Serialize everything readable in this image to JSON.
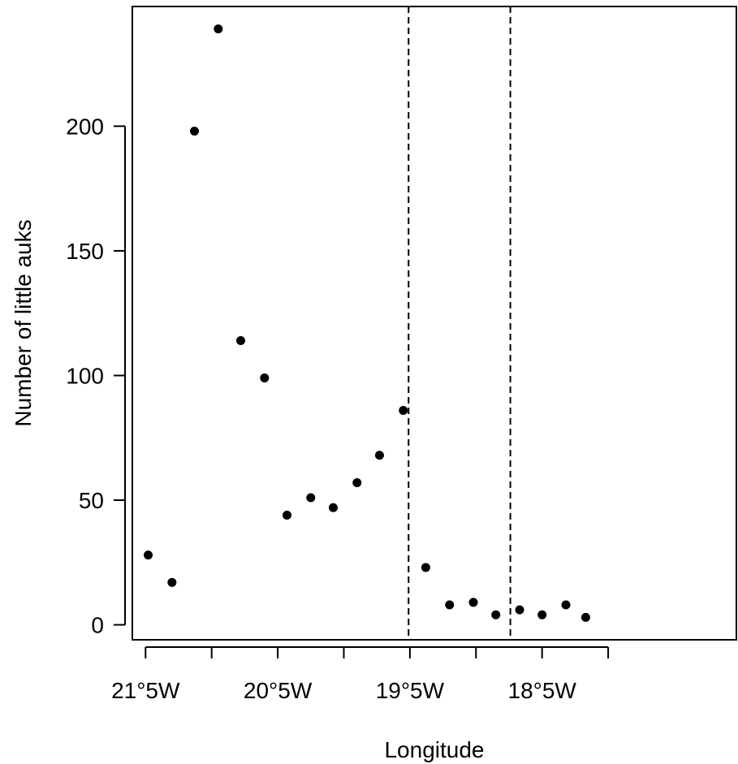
{
  "chart_data": {
    "type": "scatter",
    "title": "",
    "xlabel": "Longitude",
    "ylabel": "Number of little auks",
    "xlim": [
      -21.85,
      -17.28
    ],
    "ylim": [
      -6,
      248
    ],
    "x_ticks": [
      -21.75,
      -21.25,
      -20.75,
      -20.25,
      -19.75,
      -19.25,
      -18.75,
      -18.25
    ],
    "x_tick_labels": [
      {
        "value": -21.75,
        "label": "21°5W"
      },
      {
        "value": -20.75,
        "label": "20°5W"
      },
      {
        "value": -19.75,
        "label": "19°5W"
      },
      {
        "value": -18.75,
        "label": "18°5W"
      }
    ],
    "y_ticks": [
      0,
      50,
      100,
      150,
      200
    ],
    "vlines": [
      -19.76,
      -18.99
    ],
    "grid": false,
    "legend": "none",
    "marker_color": "#000000",
    "points": [
      {
        "x": -21.73,
        "y": 28
      },
      {
        "x": -21.55,
        "y": 17
      },
      {
        "x": -21.38,
        "y": 198
      },
      {
        "x": -21.2,
        "y": 239
      },
      {
        "x": -21.03,
        "y": 114
      },
      {
        "x": -20.85,
        "y": 99
      },
      {
        "x": -20.68,
        "y": 44
      },
      {
        "x": -20.5,
        "y": 51
      },
      {
        "x": -20.33,
        "y": 47
      },
      {
        "x": -20.15,
        "y": 57
      },
      {
        "x": -19.98,
        "y": 68
      },
      {
        "x": -19.8,
        "y": 86
      },
      {
        "x": -19.63,
        "y": 23
      },
      {
        "x": -19.45,
        "y": 8
      },
      {
        "x": -19.27,
        "y": 9
      },
      {
        "x": -19.1,
        "y": 4
      },
      {
        "x": -18.92,
        "y": 6
      },
      {
        "x": -18.75,
        "y": 4
      },
      {
        "x": -18.57,
        "y": 8
      },
      {
        "x": -18.42,
        "y": 3
      }
    ]
  }
}
